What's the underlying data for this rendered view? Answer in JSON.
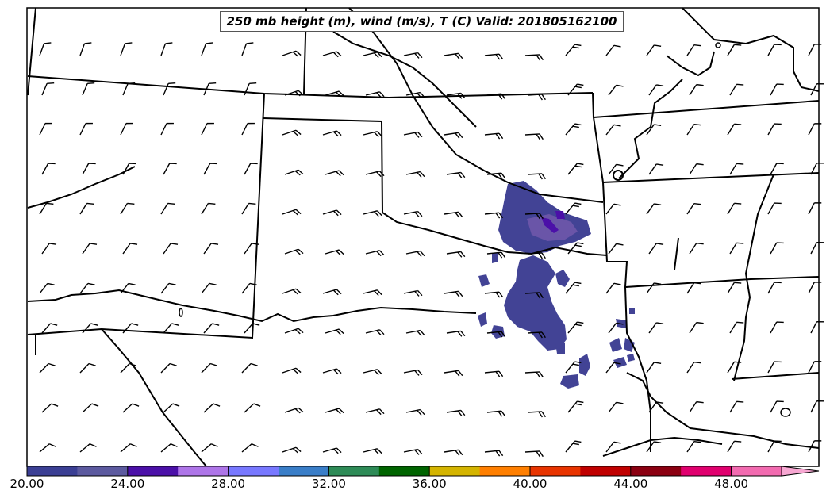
{
  "title": "250 mb height (m), wind (m/s), T (C) Valid: 201805162100",
  "colorbar": {
    "colors": [
      "#3b3f94",
      "#5c5a9f",
      "#4b10a8",
      "#ae75e8",
      "#7878ff",
      "#3a7ec8",
      "#2e8b57",
      "#006400",
      "#d4b400",
      "#ff7f00",
      "#e83400",
      "#c00000",
      "#8b0011",
      "#e0006e",
      "#f26bb0"
    ],
    "extend_color": "#f7a7d2",
    "ticks": [
      "20.00",
      "24.00",
      "28.00",
      "32.00",
      "36.00",
      "40.00",
      "44.00",
      "48.00"
    ]
  },
  "temperature_fill_color": "#424395",
  "temperature_core_color": "#4b10a8",
  "temperature_mid_color": "#6a55a8"
}
